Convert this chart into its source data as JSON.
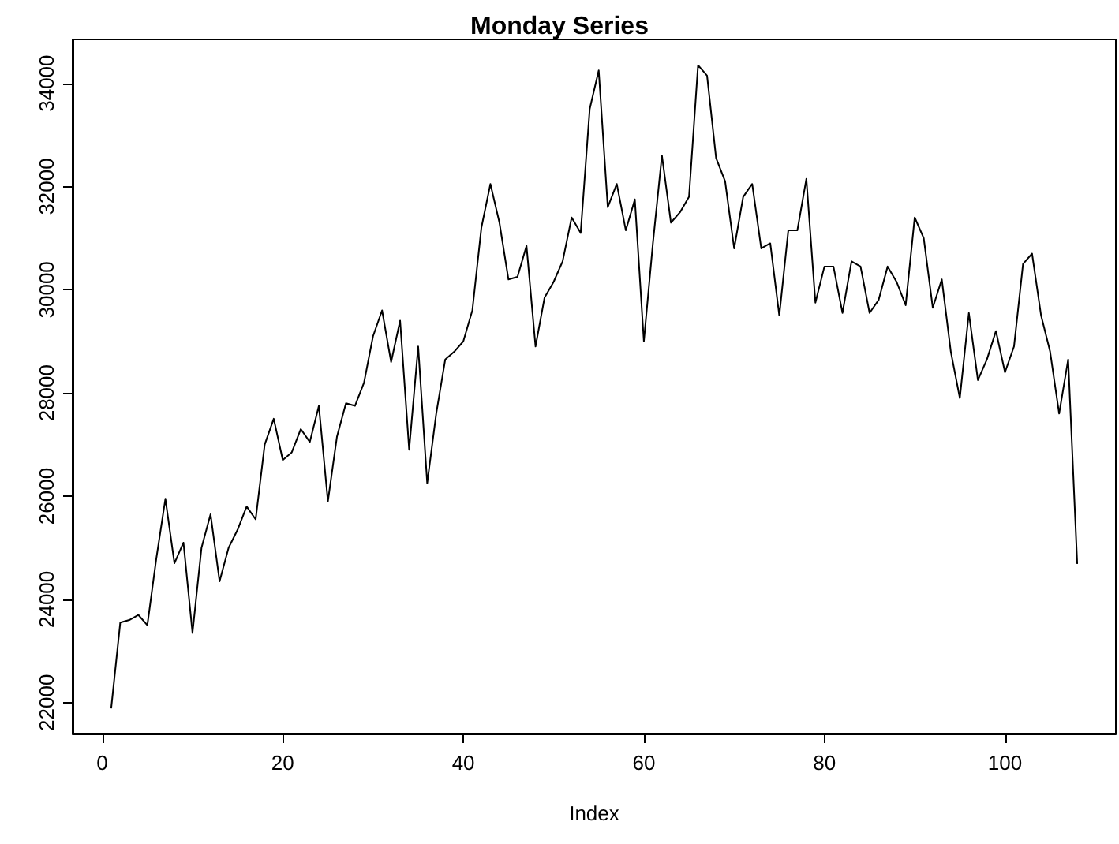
{
  "chart_data": {
    "type": "line",
    "title": "Monday Series",
    "xlabel": "Index",
    "x": [
      1,
      2,
      3,
      4,
      5,
      6,
      7,
      8,
      9,
      10,
      11,
      12,
      13,
      14,
      15,
      16,
      17,
      18,
      19,
      20,
      21,
      22,
      23,
      24,
      25,
      26,
      27,
      28,
      29,
      30,
      31,
      32,
      33,
      34,
      35,
      36,
      37,
      38,
      39,
      40,
      41,
      42,
      43,
      44,
      45,
      46,
      47,
      48,
      49,
      50,
      51,
      52,
      53,
      54,
      55,
      56,
      57,
      58,
      59,
      60,
      61,
      62,
      63,
      64,
      65,
      66,
      67,
      68,
      69,
      70,
      71,
      72,
      73,
      74,
      75,
      76,
      77,
      78,
      79,
      80,
      81,
      82,
      83,
      84,
      85,
      86,
      87,
      88,
      89,
      90,
      91,
      92,
      93,
      94,
      95,
      96,
      97,
      98,
      99,
      100,
      101,
      102,
      103,
      104,
      105,
      106,
      107,
      108
    ],
    "series": [
      {
        "color": "#000000",
        "values": [
          21900,
          23550,
          23600,
          23700,
          23500,
          24800,
          25950,
          24700,
          25100,
          23350,
          25000,
          25650,
          24350,
          25000,
          25350,
          25800,
          25550,
          27000,
          27500,
          26700,
          26850,
          27300,
          27050,
          27750,
          25900,
          27150,
          27800,
          27750,
          28200,
          29100,
          29600,
          28600,
          29400,
          26900,
          28900,
          26250,
          27600,
          28650,
          28800,
          29000,
          29600,
          31200,
          32050,
          31300,
          30200,
          30250,
          30850,
          28900,
          29850,
          30150,
          30550,
          31400,
          31100,
          33500,
          34250,
          31600,
          32050,
          31150,
          31750,
          29000,
          30900,
          32600,
          31300,
          31500,
          31800,
          34350,
          34150,
          32550,
          32100,
          30800,
          31800,
          32050,
          30800,
          30900,
          29500,
          31150,
          31150,
          32150,
          29750,
          30450,
          30450,
          29550,
          30550,
          30450,
          29550,
          29800,
          30450,
          30150,
          29700,
          31400,
          31000,
          29650,
          30200,
          28800,
          27900,
          29550,
          28250,
          28650,
          29200,
          28400,
          28900,
          30500,
          30700,
          29500,
          28800,
          27600,
          28650,
          24700
        ]
      }
    ],
    "xlim": [
      -3.28,
      112.28
    ],
    "xticks": [
      0,
      20,
      40,
      60,
      80,
      100
    ],
    "ylim": [
      21400,
      34850
    ],
    "yticks": [
      22000,
      24000,
      26000,
      28000,
      30000,
      32000,
      34000
    ],
    "marker": "none",
    "line_style": "solid"
  }
}
